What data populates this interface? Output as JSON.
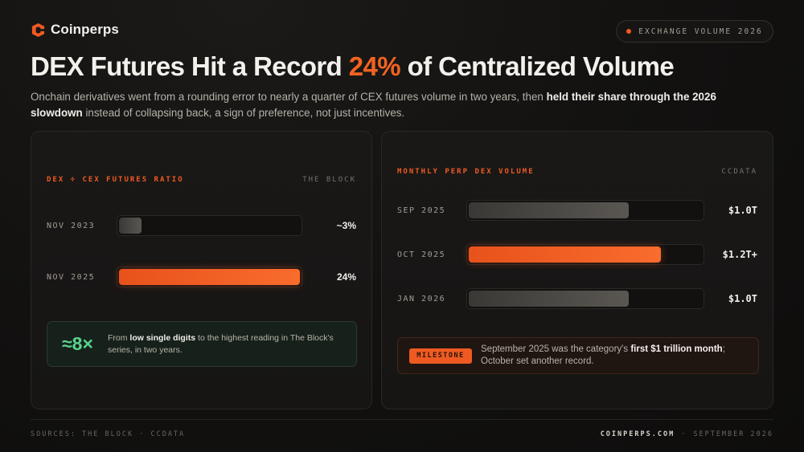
{
  "brand": {
    "name": "Coinperps",
    "logo_icon": "coinperps-c-logo-icon"
  },
  "tag": {
    "label": "EXCHANGE VOLUME 2026",
    "dot_color": "#f05a22"
  },
  "headline": {
    "before": "DEX Futures Hit a Record ",
    "accent": "24%",
    "after": " of Centralized Volume"
  },
  "subhead": {
    "part1": "Onchain derivatives went from a rounding error to nearly a quarter of CEX futures volume in two years, then ",
    "bold": "held their share through the 2026 slowdown",
    "part2": " instead of collapsing back, a sign of preference, not just incentives."
  },
  "left_card": {
    "title": "DEX ÷ CEX FUTURES RATIO",
    "source": "THE BLOCK",
    "rows": [
      {
        "label": "NOV 2023",
        "value_text": "~3%",
        "value": 3,
        "highlight": false
      },
      {
        "label": "NOV 2025",
        "value_text": "24%",
        "value": 24,
        "highlight": true
      }
    ],
    "note": {
      "big": "≈8×",
      "pre": "From ",
      "bold": "low single digits",
      "post": " to the highest reading in The Block's series, in two years."
    }
  },
  "right_card": {
    "title": "MONTHLY PERP DEX VOLUME",
    "source": "CCDATA",
    "rows": [
      {
        "label": "SEP 2025",
        "value_text": "$1.0T",
        "value": 1.0,
        "highlight": false
      },
      {
        "label": "OCT 2025",
        "value_text": "$1.2T+",
        "value": 1.2,
        "highlight": true
      },
      {
        "label": "JAN 2026",
        "value_text": "$1.0T",
        "value": 1.0,
        "highlight": false
      }
    ],
    "milestone": {
      "badge": "MILESTONE",
      "pre": "September 2025 was the category's ",
      "bold": "first $1 trillion month",
      "post": "; October set another record."
    }
  },
  "footer": {
    "sources": "SOURCES: THE BLOCK · CCDATA",
    "site": "COINPERPS.COM",
    "sep": "·",
    "date": "SEPTEMBER 2026"
  },
  "colors": {
    "accent": "#f26322",
    "positive": "#58d38d"
  }
}
